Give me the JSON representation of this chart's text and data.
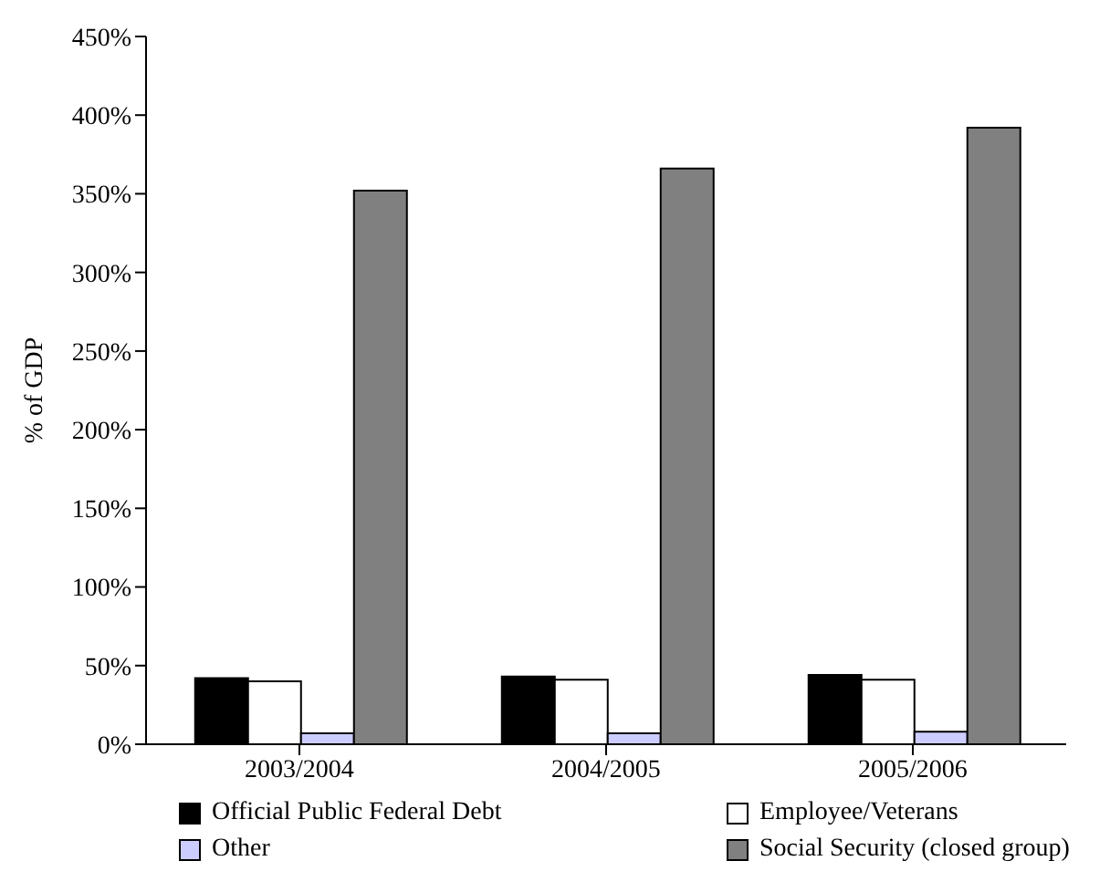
{
  "chart_data": {
    "type": "bar",
    "ylabel": "% of GDP",
    "categories": [
      "2003/2004",
      "2004/2005",
      "2005/2006"
    ],
    "series": [
      {
        "name": "Official Public Federal Debt",
        "color": "#000000",
        "values": [
          42,
          43,
          44
        ]
      },
      {
        "name": "Employee/Veterans",
        "color": "#ffffff",
        "values": [
          40,
          41,
          41
        ]
      },
      {
        "name": "Other",
        "color": "#ccccff",
        "values": [
          7,
          7,
          8
        ]
      },
      {
        "name": "Social Security (closed group)",
        "color": "#808080",
        "values": [
          352,
          366,
          392
        ]
      }
    ],
    "ylim": [
      0,
      450
    ],
    "yticks": [
      {
        "value": 0,
        "label": "0%"
      },
      {
        "value": 50,
        "label": "50%"
      },
      {
        "value": 100,
        "label": "100%"
      },
      {
        "value": 150,
        "label": "150%"
      },
      {
        "value": 200,
        "label": "200%"
      },
      {
        "value": 250,
        "label": "250%"
      },
      {
        "value": 300,
        "label": "300%"
      },
      {
        "value": 350,
        "label": "350%"
      },
      {
        "value": 400,
        "label": "400%"
      },
      {
        "value": 450,
        "label": "450%"
      }
    ],
    "grid": false,
    "legend": "bottom"
  }
}
